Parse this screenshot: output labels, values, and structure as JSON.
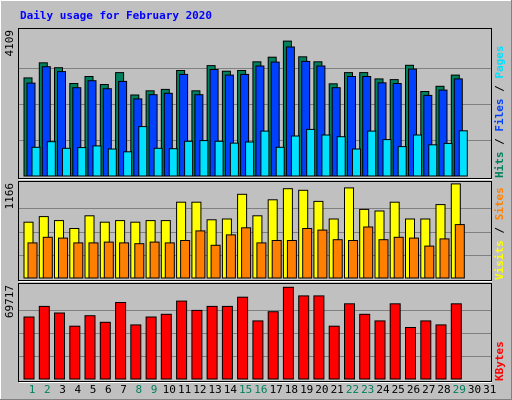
{
  "title": "Daily usage for February 2020",
  "colors": {
    "background": "#c0c0c0",
    "plot": "#c0c0c0",
    "hits": "#00805c",
    "files": "#0040ff",
    "pages": "#00e0ff",
    "visits": "#ffff00",
    "sites": "#ff8000",
    "kbytes": "#ff0000",
    "weekday_label": "#000000",
    "weekend_label": "#00805c"
  },
  "chart_data": {
    "type": "bar",
    "days": [
      "1",
      "2",
      "3",
      "4",
      "5",
      "6",
      "7",
      "8",
      "9",
      "10",
      "11",
      "12",
      "13",
      "14",
      "15",
      "16",
      "17",
      "18",
      "19",
      "20",
      "21",
      "22",
      "23",
      "24",
      "25",
      "26",
      "27",
      "28",
      "29",
      "30",
      "31"
    ],
    "weekend_days": [
      1,
      2,
      8,
      9,
      15,
      16,
      22,
      23,
      29
    ],
    "panels": [
      {
        "ymax_label": "4109",
        "ymax": 4109,
        "legend": [
          {
            "text": "Hits",
            "color": "#00805c"
          },
          {
            "text": " / ",
            "color": "#000000"
          },
          {
            "text": "Files",
            "color": "#0040ff"
          },
          {
            "text": " / ",
            "color": "#000000"
          },
          {
            "text": "Pages",
            "color": "#00e0ff"
          }
        ],
        "series": [
          {
            "name": "Hits",
            "color": "#00805c",
            "values": [
              2800,
              3230,
              3090,
              2640,
              2840,
              2610,
              2950,
              2310,
              2430,
              2470,
              3010,
              2430,
              3150,
              2990,
              3010,
              3260,
              3390,
              3850,
              3400,
              3260,
              2630,
              2950,
              2950,
              2770,
              2750,
              3160,
              2410,
              2560,
              2880,
              null,
              null
            ]
          },
          {
            "name": "Files",
            "color": "#0040ff",
            "values": [
              2650,
              3120,
              2980,
              2520,
              2720,
              2490,
              2700,
              2200,
              2320,
              2360,
              2900,
              2320,
              3040,
              2880,
              2900,
              3140,
              3250,
              3680,
              3270,
              3140,
              2520,
              2840,
              2840,
              2660,
              2640,
              3050,
              2300,
              2450,
              2770,
              null,
              null
            ]
          },
          {
            "name": "Pages",
            "color": "#00e0ff",
            "values": [
              820,
              980,
              790,
              810,
              860,
              770,
              690,
              1410,
              790,
              780,
              990,
              1010,
              990,
              940,
              970,
              1280,
              820,
              1140,
              1330,
              1170,
              1120,
              770,
              1280,
              1040,
              840,
              1170,
              890,
              930,
              1290,
              null,
              null
            ]
          }
        ]
      },
      {
        "ymax_label": "1166",
        "ymax": 1166,
        "legend": [
          {
            "text": "Visits",
            "color": "#ffff00"
          },
          {
            "text": " / ",
            "color": "#000000"
          },
          {
            "text": "Sites",
            "color": "#ff8000"
          }
        ],
        "series": [
          {
            "name": "Visits",
            "color": "#ffff00",
            "values": [
              700,
              770,
              720,
              620,
              780,
              700,
              720,
              700,
              720,
              720,
              950,
              950,
              730,
              740,
              1050,
              780,
              980,
              1120,
              1100,
              960,
              740,
              1130,
              860,
              840,
              950,
              740,
              740,
              920,
              1180,
              null,
              null
            ]
          },
          {
            "name": "Sites",
            "color": "#ff8000",
            "values": [
              440,
              510,
              500,
              440,
              440,
              450,
              440,
              430,
              450,
              440,
              470,
              590,
              410,
              540,
              630,
              440,
              470,
              470,
              620,
              600,
              480,
              470,
              640,
              480,
              510,
              500,
              400,
              490,
              670,
              null,
              null
            ]
          }
        ]
      },
      {
        "ymax_label": "69717",
        "ymax": 69717,
        "legend": [
          {
            "text": "KBytes",
            "color": "#ff0000"
          }
        ],
        "series": [
          {
            "name": "KBytes",
            "color": "#ff0000",
            "values": [
              47000,
              55000,
              50000,
              40000,
              48000,
              43000,
              58000,
              41000,
              47000,
              49000,
              59000,
              52000,
              55000,
              55000,
              62000,
              44000,
              51000,
              69500,
              63000,
              63000,
              40000,
              57000,
              49000,
              44000,
              57000,
              39000,
              44000,
              41000,
              57000,
              null,
              null
            ]
          }
        ]
      }
    ]
  }
}
